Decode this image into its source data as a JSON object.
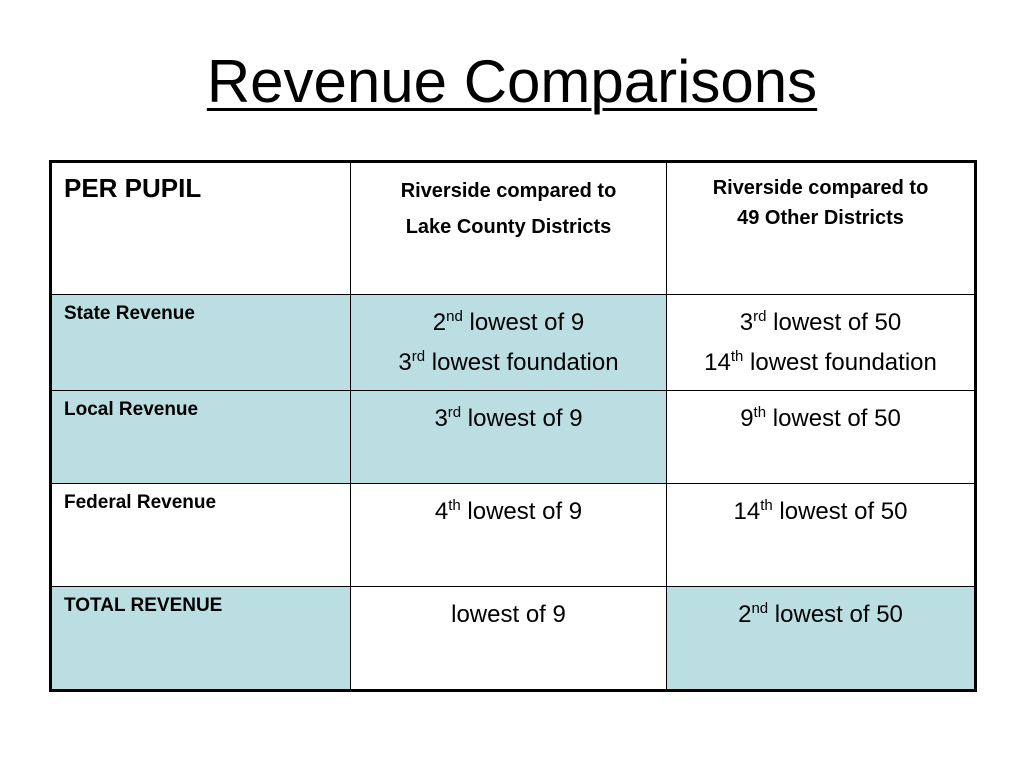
{
  "title": "Revenue Comparisons",
  "table": {
    "header": {
      "label": "PER PUPIL",
      "col1": {
        "line1": "Riverside compared to",
        "line2": "Lake County Districts"
      },
      "col2": {
        "line1": "Riverside compared to",
        "line2": "49 Other Districts"
      }
    },
    "rows": [
      {
        "label": "State Revenue",
        "shaded": true,
        "col1": [
          {
            "num": "2",
            "sup": "nd",
            "rest": " lowest of 9"
          },
          {
            "num": "3",
            "sup": "rd",
            "rest": " lowest foundation"
          }
        ],
        "col2": [
          {
            "num": "3",
            "sup": "rd",
            "rest": " lowest of 50"
          },
          {
            "num": "14",
            "sup": "th",
            "rest": " lowest foundation"
          }
        ]
      },
      {
        "label": "Local Revenue",
        "shaded": true,
        "col1": [
          {
            "num": "3",
            "sup": "rd",
            "rest": " lowest of 9"
          }
        ],
        "col2": [
          {
            "num": "9",
            "sup": "th",
            "rest": " lowest of 50"
          }
        ]
      },
      {
        "label": "Federal Revenue",
        "shaded": false,
        "col1": [
          {
            "num": "4",
            "sup": "th",
            "rest": " lowest of 9"
          }
        ],
        "col2": [
          {
            "num": "14",
            "sup": "th",
            "rest": " lowest of 50"
          }
        ]
      },
      {
        "label": "TOTAL REVENUE",
        "shaded": true,
        "col1": [
          {
            "num": "",
            "sup": "",
            "rest": "lowest of 9"
          }
        ],
        "col2": [
          {
            "num": "2",
            "sup": "nd",
            "rest": " lowest of 50"
          }
        ]
      }
    ]
  },
  "colors": {
    "shade": "#badee2",
    "border": "#000000",
    "background": "#ffffff"
  }
}
